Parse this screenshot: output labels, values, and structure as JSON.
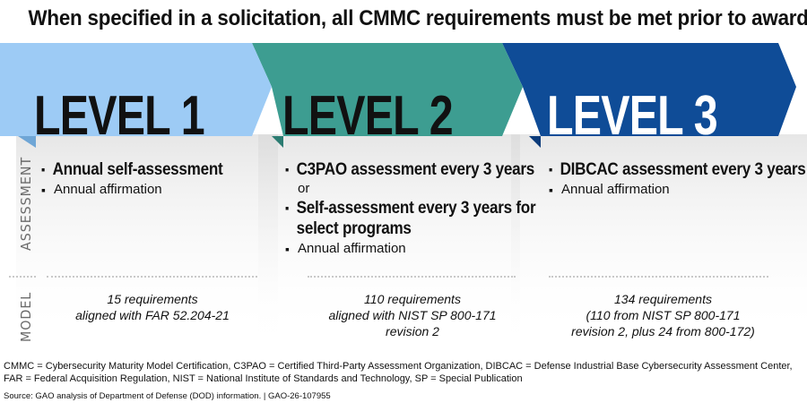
{
  "title": "When specified in a solicitation, all CMMC requirements must be met prior to award",
  "colors": {
    "level1": "#9dcbf5",
    "level2": "#3d9d91",
    "level3": "#0f4c97",
    "text_dark": "#111111",
    "side_label": "#6b6b6b"
  },
  "row_labels": {
    "assessment": "ASSESSMENT",
    "model": "MODEL"
  },
  "levels": [
    {
      "label": "LEVEL 1",
      "assessment": [
        {
          "style": "strong",
          "text": "Annual self-assessment"
        },
        {
          "style": "normal",
          "text": "Annual affirmation"
        }
      ],
      "model": [
        "15 requirements",
        "aligned with FAR 52.204-21"
      ]
    },
    {
      "label": "LEVEL 2",
      "assessment": [
        {
          "style": "strong",
          "text": "C3PAO assessment every 3 years"
        },
        {
          "style": "or",
          "text": "or"
        },
        {
          "style": "strong",
          "text": "Self-assessment every 3 years for select programs"
        },
        {
          "style": "normal",
          "text": "Annual affirmation"
        }
      ],
      "model": [
        "110 requirements",
        "aligned with NIST SP 800-171",
        "revision 2"
      ]
    },
    {
      "label": "LEVEL 3",
      "assessment": [
        {
          "style": "strong",
          "text": "DIBCAC assessment every 3 years"
        },
        {
          "style": "normal",
          "text": "Annual affirmation"
        }
      ],
      "model": [
        "134 requirements",
        "(110 from NIST SP 800-171",
        "revision 2, plus 24 from 800-172)"
      ]
    }
  ],
  "footnote": "CMMC = Cybersecurity Maturity Model Certification, C3PAO = Certified Third-Party Assessment Organization, DIBCAC = Defense Industrial Base Cybersecurity Assessment Center, FAR = Federal Acquisition Regulation, NIST = National Institute of Standards and Technology, SP = Special Publication",
  "source": "Source: GAO analysis of Department of Defense (DOD) information.  |  GAO-26-107955"
}
